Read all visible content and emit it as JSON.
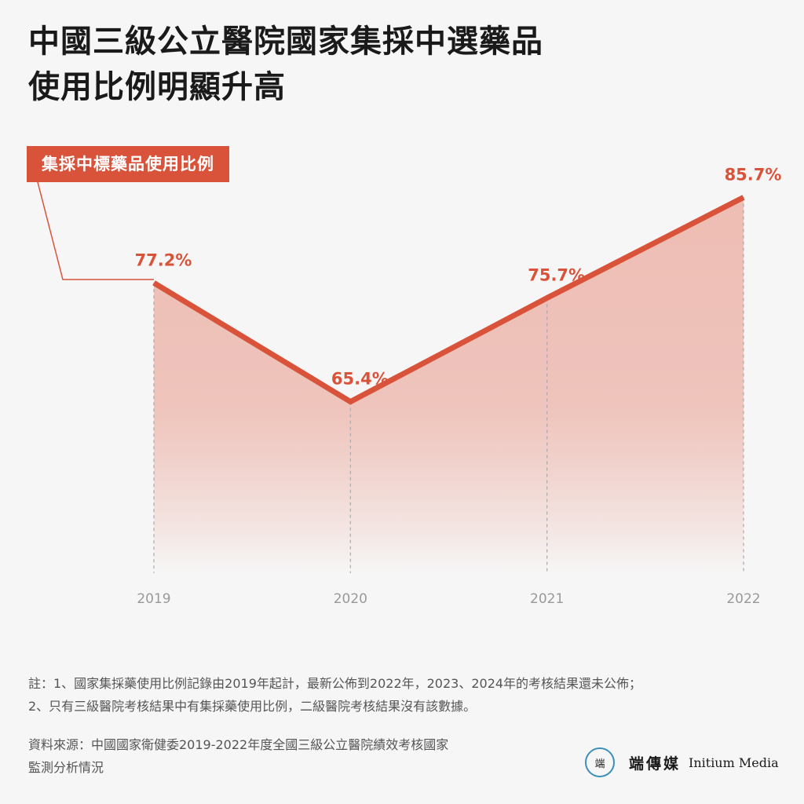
{
  "title_lines": [
    "中國三級公立醫院國家集採中選藥品",
    "使用比例明顯升高"
  ],
  "chart_data": {
    "type": "area",
    "x": [
      "2019",
      "2020",
      "2021",
      "2022"
    ],
    "series": [
      {
        "name": "集採中標藥品使用比例",
        "values": [
          77.2,
          65.4,
          75.7,
          85.7
        ],
        "labels": [
          "77.2%",
          "65.4%",
          "75.7%",
          "85.7%"
        ]
      }
    ],
    "ylim": [
      0,
      100
    ],
    "unit": "%",
    "grid": false,
    "legend": "top-left",
    "colors": {
      "line": "#d9533b",
      "fill_top": "#ecb3a8",
      "fill_bottom": "#f6f6f6",
      "dash": "#aaaaaa",
      "tick": "#999999"
    }
  },
  "notes": [
    "註：1、國家集採藥使用比例記錄由2019年起計，最新公佈到2022年，2023、2024年的考核結果還未公佈；",
    "2、只有三級醫院考核結果中有集採藥使用比例，二級醫院考核結果沒有該數據。"
  ],
  "source": [
    "資料來源：中國國家衛健委2019-2022年度全國三級公立醫院績效考核國家",
    "監測分析情況"
  ],
  "brand": {
    "logo_icon": "端",
    "name_cn": "端傳媒",
    "name_en": "Initium Media"
  }
}
